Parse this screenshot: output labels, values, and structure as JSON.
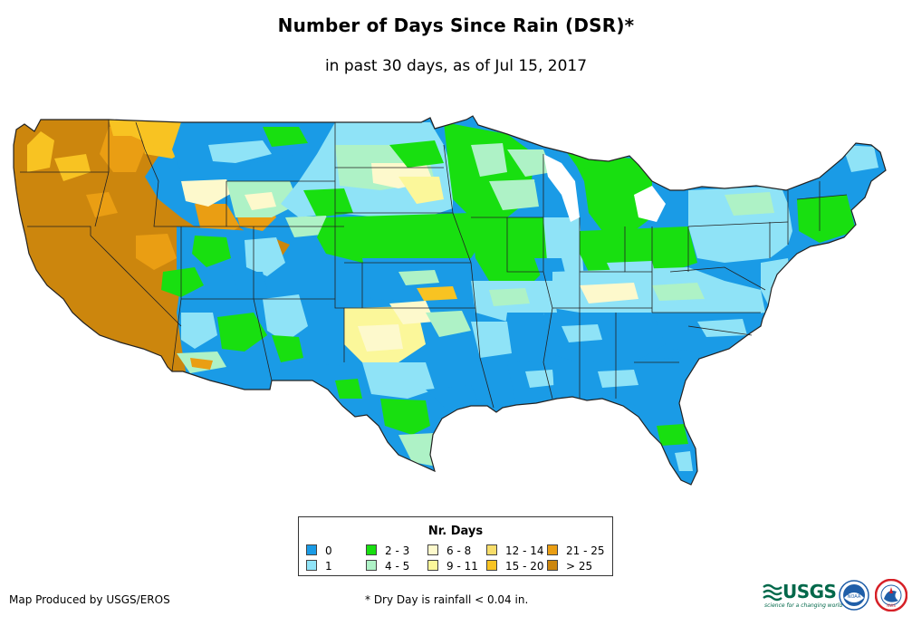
{
  "title": "Number of Days Since Rain (DSR)*",
  "subtitle": "in past 30 days, as of Jul 15, 2017",
  "legend": {
    "title": "Nr. Days",
    "items": [
      {
        "label": "0",
        "color": "#1a9be6"
      },
      {
        "label": "1",
        "color": "#8fe3f7"
      },
      {
        "label": "2 - 3",
        "color": "#18df10"
      },
      {
        "label": "4 - 5",
        "color": "#aef2c6"
      },
      {
        "label": "6 - 8",
        "color": "#fdf9cc"
      },
      {
        "label": "9 - 11",
        "color": "#fbf79a"
      },
      {
        "label": "12 - 14",
        "color": "#f7dd6a"
      },
      {
        "label": "15 - 20",
        "color": "#f8c322"
      },
      {
        "label": "21 - 25",
        "color": "#ea9e13"
      },
      {
        "label": "> 25",
        "color": "#cc860d"
      }
    ]
  },
  "footer": {
    "credit": "Map Produced by USGS/EROS",
    "footnote": "* Dry Day is rainfall < 0.04 in."
  },
  "logos": {
    "usgs_text": "USGS",
    "usgs_tagline": "science for a changing world",
    "noaa_text": "NOAA",
    "nws_text": "NWS",
    "usgs_color": "#00684a",
    "noaa_color": "#1f5ea8",
    "nws_color": "#d62027"
  }
}
